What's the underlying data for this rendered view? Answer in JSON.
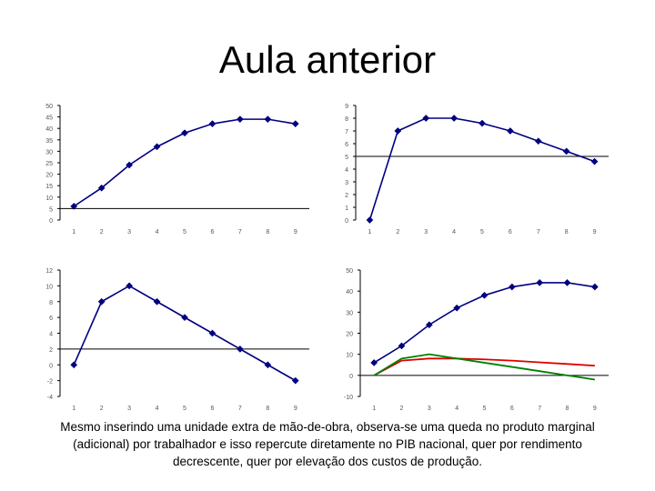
{
  "slide": {
    "title": "Aula anterior",
    "caption": "Mesmo inserindo uma unidade extra de mão-de-obra, observa-se uma queda no produto marginal (adicional) por trabalhador e isso repercute diretamente no PIB nacional, quer por rendimento decrescente, quer por elevação dos custos de produção."
  },
  "colors": {
    "marker": "#000080",
    "red_line": "#dd0000",
    "green_line": "#008000",
    "axis": "#000000",
    "label": "#555555"
  },
  "chart_data": [
    {
      "type": "line",
      "categories": [
        "1",
        "2",
        "3",
        "4",
        "5",
        "6",
        "7",
        "8",
        "9"
      ],
      "series": [
        {
          "values": [
            6,
            14,
            24,
            32,
            38,
            42,
            44,
            44,
            42
          ],
          "color": "#000080",
          "marker": "diamond"
        }
      ],
      "ylim": [
        0,
        50
      ],
      "yticks": [
        "0",
        "5",
        "10",
        "15",
        "20",
        "25",
        "30",
        "35",
        "40",
        "45",
        "50"
      ],
      "hline": 5,
      "grid": false
    },
    {
      "type": "line",
      "categories": [
        "1",
        "2",
        "3",
        "4",
        "5",
        "6",
        "7",
        "8",
        "9"
      ],
      "series": [
        {
          "values": [
            0,
            7,
            8,
            8,
            7.6,
            7,
            6.2,
            5.4,
            4.6
          ],
          "color": "#000080",
          "marker": "diamond"
        }
      ],
      "ylim": [
        0,
        9
      ],
      "yticks": [
        "0",
        "1",
        "2",
        "3",
        "4",
        "5",
        "6",
        "7",
        "8",
        "9"
      ],
      "hline": 5,
      "grid": false
    },
    {
      "type": "line",
      "categories": [
        "1",
        "2",
        "3",
        "4",
        "5",
        "6",
        "7",
        "8",
        "9"
      ],
      "series": [
        {
          "values": [
            0,
            8,
            10,
            8,
            6,
            4,
            2,
            0,
            -2
          ],
          "color": "#000080",
          "marker": "diamond"
        }
      ],
      "ylim": [
        -4,
        12
      ],
      "yticks": [
        "-4",
        "-2",
        "0",
        "2",
        "4",
        "6",
        "8",
        "10",
        "12"
      ],
      "hline": 2,
      "grid": false
    },
    {
      "type": "line",
      "categories": [
        "1",
        "2",
        "3",
        "4",
        "5",
        "6",
        "7",
        "8",
        "9"
      ],
      "series": [
        {
          "values": [
            6,
            14,
            24,
            32,
            38,
            42,
            44,
            44,
            42
          ],
          "color": "#000080",
          "marker": "diamond"
        },
        {
          "values": [
            0,
            7,
            8,
            8,
            7.6,
            7,
            6.2,
            5.4,
            4.6
          ],
          "color": "#dd0000",
          "marker": "none"
        },
        {
          "values": [
            0,
            8,
            10,
            8,
            6,
            4,
            2,
            0,
            -2
          ],
          "color": "#008000",
          "marker": "none"
        }
      ],
      "ylim": [
        -10,
        50
      ],
      "yticks": [
        "-10",
        "0",
        "10",
        "20",
        "30",
        "40",
        "50"
      ],
      "hline": 0,
      "grid": false
    }
  ]
}
